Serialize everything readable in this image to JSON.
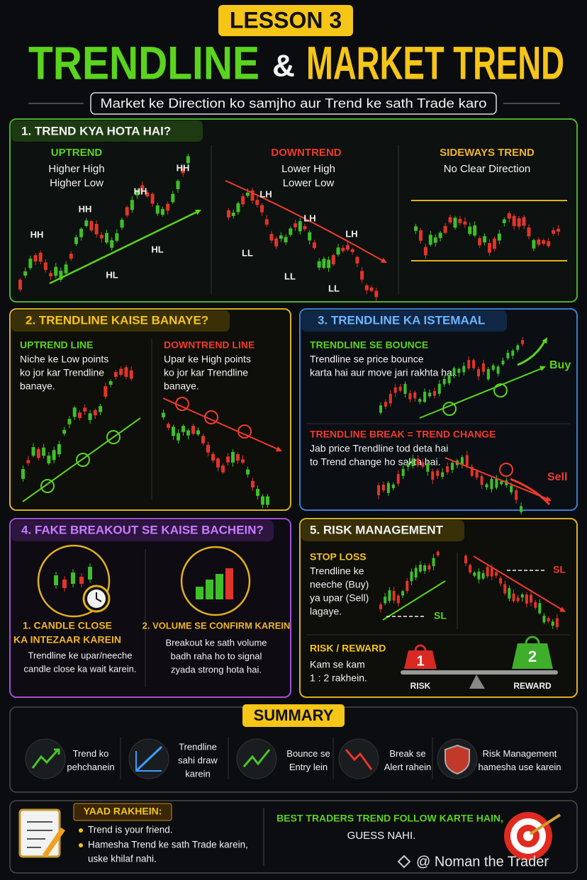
{
  "header": {
    "badge": "LESSON 3",
    "title_left": "TRENDLINE",
    "title_amp": "&",
    "title_right": "MARKET TREND",
    "subtitle": "Market ke Direction ko samjho aur Trend ke sath Trade karo"
  },
  "trend_types": {
    "title": "1. TREND KYA HOTA HAI?",
    "uptrend": {
      "title": "UPTREND",
      "lines": [
        "Higher High",
        "Higher Low"
      ],
      "labels": [
        "HH",
        "HH",
        "HH",
        "HH",
        "HL",
        "HL"
      ]
    },
    "downtrend": {
      "title": "DOWNTREND",
      "lines": [
        "Lower High",
        "Lower Low"
      ],
      "labels": [
        "LH",
        "LH",
        "LH",
        "LL",
        "LL",
        "LL"
      ]
    },
    "sideways": {
      "title": "SIDEWAYS TREND",
      "lines": [
        "No Clear Direction"
      ]
    }
  },
  "draw_trendline": {
    "title": "2. TRENDLINE KAISE BANAYE?",
    "uptrend": {
      "title": "UPTREND LINE",
      "lines": [
        "Niche ke Low points",
        "ko jor kar Trendline",
        "banaye."
      ]
    },
    "downtrend": {
      "title": "DOWNTREND LINE",
      "lines": [
        "Upar ke High points",
        "ko jor  kar Trendline",
        "banaye."
      ]
    }
  },
  "use_trendline": {
    "title": "3. TRENDLINE KA ISTEMAAL",
    "bounce": {
      "title": "TRENDLINE SE BOUNCE",
      "lines": [
        "Trendline se price bounce",
        "karta hai aur move jari rakhta hai."
      ],
      "signal": "Buy"
    },
    "break": {
      "title": "TRENDLINE BREAK = TREND CHANGE",
      "lines": [
        "Jab price Trendline tod deta hai",
        "to Trend change ho sakta hai."
      ],
      "signal": "Sell"
    }
  },
  "fake_breakout": {
    "title": "4. FAKE BREAKOUT SE KAISE BACHEIN?",
    "items": [
      {
        "title": [
          "1. CANDLE CLOSE",
          "KA INTEZAAR KAREIN"
        ],
        "lines": [
          "Trendline ke upar/neeche",
          "candle close ka wait karein."
        ]
      },
      {
        "title": [
          "2. VOLUME SE CONFIRM KAREIN"
        ],
        "lines": [
          "Breakout ke sath volume",
          "badh raha ho to signal",
          "zyada strong hota  hai."
        ]
      }
    ]
  },
  "risk_management": {
    "title": "5. RISK MANAGEMENT",
    "stop_loss": {
      "title": "STOP LOSS",
      "lines": [
        "Trendline ke",
        "neeche (Buy)",
        "ya upar (Sell)",
        "lagaye."
      ],
      "labels": [
        "SL",
        "SL"
      ]
    },
    "risk_reward": {
      "title": "RISK / REWARD",
      "lines": [
        "Kam se kam",
        "1 : 2 rakhein."
      ],
      "weights": [
        "1",
        "2"
      ],
      "sides": [
        "RISK",
        "REWARD"
      ]
    }
  },
  "summary": {
    "title": "SUMMARY",
    "items": [
      [
        "Trend ko",
        "pehchanein"
      ],
      [
        "Trendline",
        "sahi draw",
        "karein"
      ],
      [
        "Bounce se",
        "Entry lein"
      ],
      [
        "Break se",
        "Alert rahein"
      ],
      [
        "Risk Management",
        "hamesha use karein"
      ]
    ]
  },
  "footer": {
    "title": "YAAD RAKHEIN:",
    "bullets": [
      [
        "Trend is your friend."
      ],
      [
        "Hamesha Trend ke sath Trade karein,",
        "uske khilaf nahi."
      ]
    ],
    "quote": [
      "BEST TRADERS TREND FOLLOW KARTE HAIN,",
      "GUESS NAHI."
    ],
    "watermark": "@ Noman the Trader"
  }
}
